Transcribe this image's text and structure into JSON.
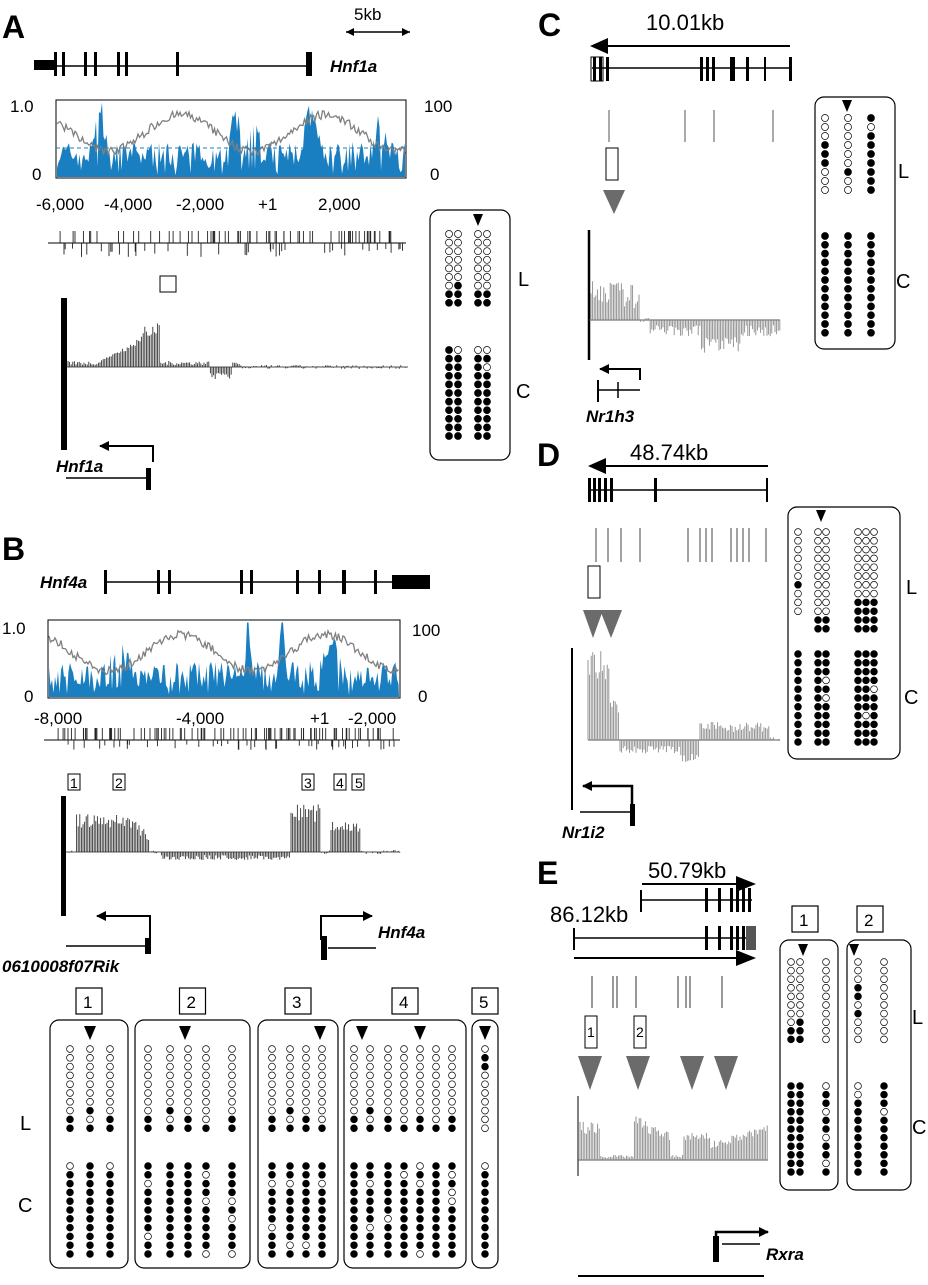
{
  "colors": {
    "conservation": "#1a7fc1",
    "identity": "#808080",
    "dashed": "#1a7fc1",
    "tracks": "#555555",
    "filled": "#000000",
    "open": "#ffffff",
    "arrowhead": "#6b6b6b"
  },
  "scale_label": "5kb",
  "panels": {
    "A": {
      "letter": "A",
      "gene": "Hnf1a",
      "gene_bottom": "Hnf1a",
      "y_left": [
        "1.0",
        "0"
      ],
      "y_right": [
        "100",
        "0"
      ],
      "x_ticks": [
        "-6,000",
        "-4,000",
        "-2,000",
        "+1",
        "2,000"
      ],
      "methyl": {
        "rows": [
          "L",
          "C"
        ],
        "liver_columns": 2,
        "marked_column": 3
      }
    },
    "B": {
      "letter": "B",
      "gene": "Hnf4a",
      "y_left": [
        "1.0",
        "0"
      ],
      "y_right": [
        "100",
        "0"
      ],
      "x_ticks": [
        "-8,000",
        "-4,000",
        "+1",
        "-2,000"
      ],
      "regions": [
        "1",
        "2",
        "3",
        "4",
        "5"
      ],
      "gene_left": "0610008f07Rik",
      "gene_right": "Hnf4a",
      "methyl_rows": [
        "L",
        "C"
      ]
    },
    "C": {
      "letter": "C",
      "size": "10.01kb",
      "gene": "Nr1h3",
      "rows": [
        "L",
        "C"
      ]
    },
    "D": {
      "letter": "D",
      "size": "48.74kb",
      "gene": "Nr1i2",
      "rows": [
        "L",
        "C"
      ]
    },
    "E": {
      "letter": "E",
      "size_short": "50.79kb",
      "size_long": "86.12kb",
      "gene": "Rxra",
      "regions": [
        "1",
        "2"
      ],
      "rows": [
        "L",
        "C"
      ]
    }
  }
}
